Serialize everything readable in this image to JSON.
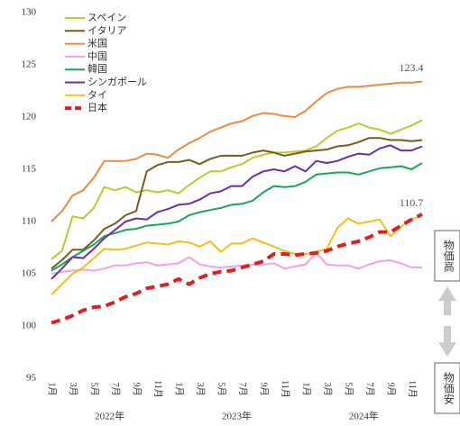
{
  "chart_data": {
    "type": "line",
    "categories": [
      "1月",
      null,
      "3月",
      null,
      "5月",
      null,
      "7月",
      null,
      "9月",
      null,
      "11月",
      null,
      "1月",
      null,
      "3月",
      null,
      "5月",
      null,
      "7月",
      null,
      "9月",
      null,
      "11月",
      null,
      "1月",
      null,
      "3月",
      null,
      "5月",
      null,
      "7月",
      null,
      "9月",
      null,
      "11月",
      null
    ],
    "year_groups": [
      "2022年",
      "2023年",
      "2024年"
    ],
    "ylim": [
      95,
      130
    ],
    "yticks": [
      95,
      100,
      105,
      110,
      115,
      120,
      125,
      130
    ],
    "legend": "upper left",
    "annotations": [
      "123.4",
      "110.7"
    ],
    "side_labels": [
      "物価高",
      "物価安"
    ],
    "series": [
      {
        "name": "スペイン",
        "color": "#bcc92a",
        "values": [
          106.4,
          107.2,
          110.5,
          110.3,
          111.3,
          113.3,
          113.0,
          113.3,
          112.8,
          113.0,
          112.8,
          113.0,
          112.7,
          113.5,
          114.2,
          114.8,
          114.8,
          115.2,
          115.5,
          116.1,
          116.4,
          116.6,
          116.6,
          116.7,
          116.8,
          117.2,
          118.0,
          118.7,
          119.0,
          119.4,
          119.0,
          118.8,
          118.4,
          118.8,
          119.2,
          119.7
        ]
      },
      {
        "name": "イタリア",
        "color": "#7a5a1e",
        "values": [
          105.5,
          106.3,
          107.3,
          107.3,
          108.2,
          109.3,
          109.8,
          110.6,
          111.0,
          114.8,
          115.4,
          115.7,
          115.7,
          115.9,
          115.5,
          116.0,
          116.3,
          116.3,
          116.3,
          116.6,
          116.8,
          116.6,
          116.3,
          116.5,
          116.7,
          116.8,
          116.9,
          117.2,
          117.3,
          117.6,
          118.0,
          118.0,
          117.8,
          117.8,
          117.7,
          117.8
        ]
      },
      {
        "name": "米国",
        "color": "#ee8a3c",
        "values": [
          110.0,
          111.0,
          112.5,
          113.0,
          114.2,
          115.8,
          115.8,
          115.8,
          116.0,
          116.5,
          116.4,
          116.1,
          116.9,
          117.5,
          118.0,
          118.6,
          119.0,
          119.4,
          119.6,
          120.1,
          120.4,
          120.3,
          120.1,
          120.0,
          120.6,
          121.5,
          122.3,
          122.7,
          122.9,
          122.9,
          123.0,
          123.1,
          123.2,
          123.3,
          123.3,
          123.4
        ]
      },
      {
        "name": "中国",
        "color": "#f5a0e6",
        "values": [
          105.0,
          105.2,
          105.3,
          105.4,
          105.3,
          105.5,
          105.8,
          105.8,
          106.0,
          106.1,
          105.8,
          105.9,
          106.0,
          106.6,
          105.9,
          105.7,
          105.6,
          105.7,
          105.8,
          105.9,
          105.9,
          106.0,
          105.5,
          105.7,
          105.9,
          107.0,
          105.9,
          105.8,
          105.8,
          105.5,
          105.9,
          106.2,
          106.3,
          106.0,
          105.6,
          105.6
        ]
      },
      {
        "name": "韓国",
        "color": "#1aa65a",
        "values": [
          105.3,
          105.9,
          106.6,
          107.2,
          107.8,
          108.6,
          108.9,
          109.2,
          109.3,
          109.6,
          109.7,
          109.8,
          110.0,
          110.6,
          110.9,
          111.1,
          111.3,
          111.6,
          111.7,
          112.0,
          112.8,
          113.4,
          113.3,
          113.4,
          113.8,
          114.5,
          114.6,
          114.7,
          114.7,
          114.5,
          114.8,
          115.1,
          115.2,
          115.3,
          115.0,
          115.6
        ]
      },
      {
        "name": "シンガポール",
        "color": "#6a2fa8",
        "values": [
          104.5,
          105.5,
          106.6,
          106.5,
          107.4,
          108.4,
          109.2,
          110.0,
          110.3,
          110.2,
          110.9,
          111.2,
          111.6,
          111.7,
          112.1,
          112.7,
          112.9,
          113.4,
          113.4,
          114.3,
          114.8,
          115.0,
          114.8,
          115.3,
          114.8,
          115.8,
          115.6,
          115.8,
          116.2,
          116.5,
          116.4,
          117.0,
          117.3,
          116.8,
          116.8,
          117.2
        ]
      },
      {
        "name": "タイ",
        "color": "#f6bd1c",
        "values": [
          103.0,
          104.0,
          105.0,
          105.6,
          106.5,
          107.4,
          107.3,
          107.4,
          107.7,
          108.0,
          107.9,
          107.8,
          108.1,
          108.0,
          107.6,
          108.1,
          107.1,
          107.9,
          107.9,
          108.4,
          108.0,
          107.6,
          107.2,
          106.9,
          106.9,
          107.1,
          107.4,
          109.4,
          110.3,
          109.8,
          110.0,
          110.2,
          108.6,
          109.5,
          110.2,
          110.6
        ]
      },
      {
        "name": "日本",
        "color": "#e02020",
        "dashed": true,
        "values": [
          100.3,
          100.6,
          101.0,
          101.5,
          101.8,
          101.9,
          102.3,
          102.8,
          103.1,
          103.6,
          103.8,
          104.0,
          104.5,
          104.0,
          104.6,
          105.0,
          105.2,
          105.3,
          105.6,
          105.9,
          106.2,
          106.9,
          106.9,
          106.8,
          106.9,
          107.0,
          107.2,
          107.6,
          107.9,
          108.1,
          108.5,
          109.0,
          109.0,
          109.6,
          110.2,
          110.7
        ]
      }
    ]
  }
}
